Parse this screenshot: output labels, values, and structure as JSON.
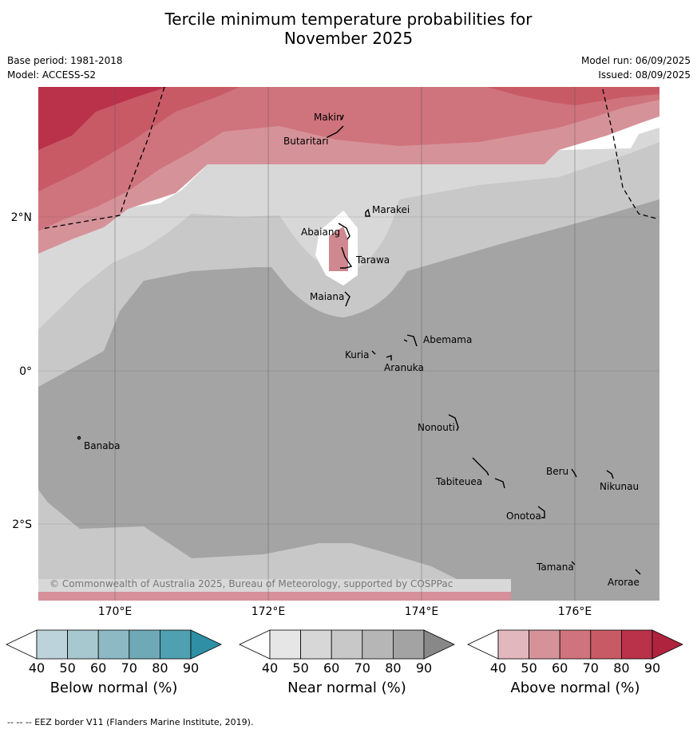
{
  "title_line1": "Tercile minimum temperature probabilities for",
  "title_line2": "November 2025",
  "base_period": "Base period: 1981-2018",
  "model": "Model: ACCESS-S2",
  "model_run": "Model run: 06/09/2025",
  "issued": "Issued: 08/09/2025",
  "lat_labels": [
    "2°N",
    "0°",
    "2°S"
  ],
  "lon_labels": [
    "170°E",
    "172°E",
    "174°E",
    "176°E"
  ],
  "copyright": "© Commonwealth of Australia 2025, Bureau of Meteorology, supported by COSPPac",
  "places": [
    "Makin",
    "Butaritari",
    "Marakei",
    "Abaiang",
    "Tarawa",
    "Maiana",
    "Abemama",
    "Kuria",
    "Aranuka",
    "Nonouti",
    "Banaba",
    "Tabiteuea",
    "Beru",
    "Nikunau",
    "Onotoa",
    "Tamana",
    "Arorae"
  ],
  "colorbars": [
    {
      "label": "Below normal (%)",
      "ticks": [
        "40",
        "50",
        "60",
        "70",
        "80",
        "90"
      ],
      "colors": [
        "#ffffff",
        "#bdd3db",
        "#a8c8cf",
        "#8db9c4",
        "#6fa9b8",
        "#4fa0b0",
        "#2e8fa5"
      ]
    },
    {
      "label": "Near normal (%)",
      "ticks": [
        "40",
        "50",
        "60",
        "70",
        "80",
        "90"
      ],
      "colors": [
        "#ffffff",
        "#e6e6e6",
        "#d7d7d7",
        "#c8c8c8",
        "#b6b6b6",
        "#a3a3a3",
        "#888888"
      ]
    },
    {
      "label": "Above normal (%)",
      "ticks": [
        "40",
        "50",
        "60",
        "70",
        "80",
        "90"
      ],
      "colors": [
        "#ffffff",
        "#e2b7be",
        "#d69299",
        "#cf737c",
        "#c85a66",
        "#b9324a",
        "#b0233e"
      ]
    }
  ],
  "footer": "--  --  -- EEZ border V11 (Flanders Marine Institute, 2019)."
}
